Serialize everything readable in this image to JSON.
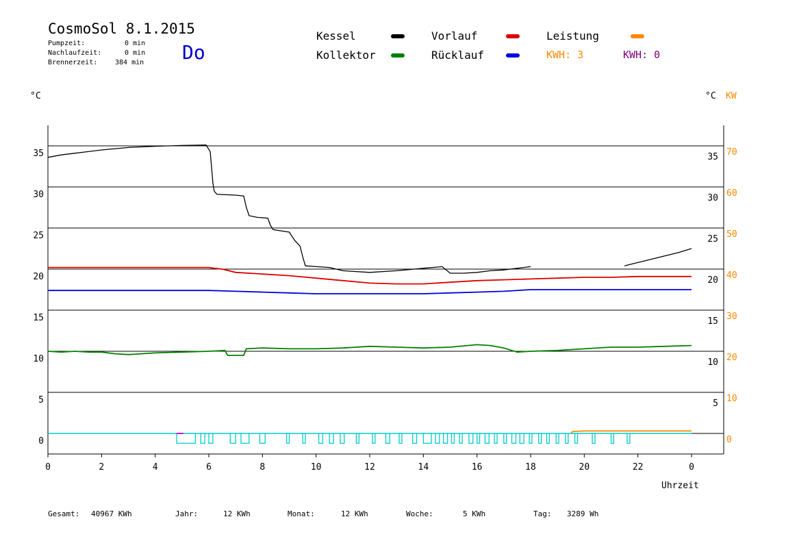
{
  "header": {
    "title": "CosmoSol 8.1.2015",
    "weekday": "Do",
    "stats": [
      {
        "label": "Pumpzeit:",
        "value": "0 min"
      },
      {
        "label": "Nachlaufzeit:",
        "value": "0 min"
      },
      {
        "label": "Brennerzeit:",
        "value": "384 min"
      }
    ]
  },
  "legend": {
    "items": [
      {
        "label": "Kessel",
        "color": "#000000"
      },
      {
        "label": "Vorlauf",
        "color": "#dd0000"
      },
      {
        "label": "Leistung",
        "color": "#ff8800"
      },
      {
        "label": "Kollektor",
        "color": "#008000"
      },
      {
        "label": "Rücklauf",
        "color": "#0000dd"
      }
    ],
    "kwh1": {
      "label": "KWH: 3",
      "color": "#ff8800"
    },
    "kwh2": {
      "label": "KWH: 0",
      "color": "#800080"
    }
  },
  "axes": {
    "left_unit": "°C",
    "right_unit_c": "°C",
    "right_unit_kw": "KW",
    "x_label": "Uhrzeit"
  },
  "footer": {
    "gesamt_label": "Gesamt:",
    "gesamt_value": "40967 KWh",
    "jahr_label": "Jahr:",
    "jahr_value": "12 KWh",
    "monat_label": "Monat:",
    "monat_value": "12 KWh",
    "woche_label": "Woche:",
    "woche_value": "5 KWh",
    "tag_label": "Tag:",
    "tag_value": "3289 Wh"
  },
  "chart_data": {
    "type": "line",
    "xlabel": "Uhrzeit",
    "ylabel": "°C",
    "xlim": [
      0,
      24
    ],
    "ylim": [
      -2.5,
      37.5
    ],
    "x_ticks": [
      "0",
      "2",
      "4",
      "6",
      "8",
      "10",
      "12",
      "14",
      "16",
      "18",
      "20",
      "22",
      "0"
    ],
    "y_ticks_left": [
      0,
      5,
      10,
      15,
      20,
      25,
      30,
      35
    ],
    "y_ticks_right_c": [
      5,
      10,
      15,
      20,
      25,
      30,
      35
    ],
    "y_ticks_right_kw": [
      0,
      10,
      20,
      30,
      40,
      50,
      60,
      70
    ],
    "grid": true,
    "series": [
      {
        "name": "Kessel",
        "color": "#000000",
        "segments": [
          [
            [
              0,
              33.6
            ],
            [
              0.5,
              33.9
            ],
            [
              1,
              34.1
            ],
            [
              2,
              34.5
            ],
            [
              3,
              34.8
            ],
            [
              4,
              34.95
            ],
            [
              5,
              35.05
            ],
            [
              5.9,
              35.1
            ],
            [
              6.05,
              34.3
            ],
            [
              6.1,
              32.5
            ],
            [
              6.15,
              30.5
            ],
            [
              6.2,
              29.5
            ],
            [
              6.3,
              29.1
            ],
            [
              7,
              29
            ],
            [
              7.3,
              28.9
            ],
            [
              7.4,
              27.5
            ],
            [
              7.5,
              26.5
            ],
            [
              7.8,
              26.3
            ],
            [
              8.2,
              26.2
            ],
            [
              8.3,
              25.3
            ],
            [
              8.4,
              24.8
            ],
            [
              9,
              24.5
            ],
            [
              9.2,
              23.5
            ],
            [
              9.4,
              22.8
            ],
            [
              9.5,
              21.5
            ],
            [
              9.6,
              20.4
            ],
            [
              10,
              20.3
            ],
            [
              10.5,
              20.2
            ],
            [
              11,
              19.8
            ],
            [
              12,
              19.6
            ],
            [
              13,
              19.8
            ],
            [
              14,
              20.1
            ],
            [
              14.7,
              20.3
            ],
            [
              15,
              19.5
            ],
            [
              15.5,
              19.5
            ],
            [
              16,
              19.6
            ],
            [
              16.5,
              19.8
            ],
            [
              17,
              19.9
            ],
            [
              17.5,
              20.1
            ],
            [
              18,
              20.3
            ]
          ],
          [
            [
              21.5,
              20.4
            ],
            [
              22,
              20.8
            ],
            [
              22.5,
              21.2
            ],
            [
              23,
              21.6
            ],
            [
              23.5,
              22
            ],
            [
              24,
              22.5
            ]
          ]
        ]
      },
      {
        "name": "Vorlauf",
        "color": "#dd0000",
        "segments": [
          [
            [
              0,
              20.2
            ],
            [
              3,
              20.2
            ],
            [
              6,
              20.2
            ],
            [
              6.2,
              20.1
            ],
            [
              6.5,
              20.0
            ],
            [
              7,
              19.6
            ],
            [
              8,
              19.4
            ],
            [
              9,
              19.2
            ],
            [
              10,
              18.9
            ],
            [
              11,
              18.6
            ],
            [
              12,
              18.3
            ],
            [
              13,
              18.2
            ],
            [
              14,
              18.2
            ],
            [
              15,
              18.4
            ],
            [
              16,
              18.6
            ],
            [
              17,
              18.7
            ],
            [
              18,
              18.8
            ],
            [
              19,
              18.9
            ],
            [
              20,
              19.0
            ],
            [
              21,
              19.0
            ],
            [
              22,
              19.1
            ],
            [
              23,
              19.1
            ],
            [
              24,
              19.1
            ]
          ]
        ]
      },
      {
        "name": "Rücklauf",
        "color": "#0000dd",
        "segments": [
          [
            [
              0,
              17.4
            ],
            [
              3,
              17.4
            ],
            [
              6,
              17.4
            ],
            [
              7,
              17.3
            ],
            [
              8,
              17.2
            ],
            [
              9,
              17.1
            ],
            [
              10,
              17.0
            ],
            [
              11,
              17.0
            ],
            [
              12,
              17.0
            ],
            [
              13,
              17.0
            ],
            [
              14,
              17.0
            ],
            [
              15,
              17.1
            ],
            [
              16,
              17.2
            ],
            [
              17,
              17.3
            ],
            [
              18,
              17.5
            ],
            [
              19,
              17.5
            ],
            [
              20,
              17.5
            ],
            [
              21,
              17.5
            ],
            [
              22,
              17.5
            ],
            [
              23,
              17.5
            ],
            [
              24,
              17.5
            ]
          ]
        ]
      },
      {
        "name": "Kollektor",
        "color": "#008000",
        "segments": [
          [
            [
              0,
              10.0
            ],
            [
              0.5,
              9.9
            ],
            [
              1,
              10.0
            ],
            [
              1.5,
              9.9
            ],
            [
              2,
              9.9
            ],
            [
              2.5,
              9.7
            ],
            [
              3,
              9.6
            ],
            [
              3.5,
              9.7
            ],
            [
              4,
              9.8
            ],
            [
              5,
              9.9
            ],
            [
              6,
              10.0
            ],
            [
              6.6,
              10.1
            ],
            [
              6.7,
              9.5
            ],
            [
              7,
              9.5
            ],
            [
              7.3,
              9.5
            ],
            [
              7.4,
              10.3
            ],
            [
              8,
              10.4
            ],
            [
              9,
              10.3
            ],
            [
              10,
              10.3
            ],
            [
              11,
              10.4
            ],
            [
              12,
              10.6
            ],
            [
              13,
              10.5
            ],
            [
              14,
              10.4
            ],
            [
              15,
              10.5
            ],
            [
              16,
              10.8
            ],
            [
              16.5,
              10.7
            ],
            [
              17,
              10.4
            ],
            [
              17.5,
              9.9
            ],
            [
              18,
              10.0
            ],
            [
              19,
              10.1
            ],
            [
              20,
              10.3
            ],
            [
              21,
              10.5
            ],
            [
              22,
              10.5
            ],
            [
              23,
              10.6
            ],
            [
              24,
              10.7
            ]
          ]
        ]
      },
      {
        "name": "Leistung",
        "color": "#ff8800",
        "segments": [
          [
            [
              19.5,
              0.1
            ],
            [
              19.6,
              0.25
            ],
            [
              20,
              0.3
            ],
            [
              21,
              0.3
            ],
            [
              22,
              0.3
            ],
            [
              23,
              0.3
            ],
            [
              24,
              0.3
            ]
          ]
        ]
      }
    ],
    "pump_pulses": [
      [
        4.8,
        5.5
      ],
      [
        5.7,
        5.85
      ],
      [
        6.0,
        6.15
      ],
      [
        6.8,
        7.0
      ],
      [
        7.2,
        7.5
      ],
      [
        7.9,
        8.1
      ],
      [
        8.9,
        9.0
      ],
      [
        9.5,
        9.6
      ],
      [
        10.1,
        10.25
      ],
      [
        10.5,
        10.65
      ],
      [
        10.9,
        11.05
      ],
      [
        11.5,
        11.6
      ],
      [
        12.1,
        12.2
      ],
      [
        12.6,
        12.75
      ],
      [
        13.1,
        13.2
      ],
      [
        13.6,
        13.75
      ],
      [
        14.0,
        14.3
      ],
      [
        14.45,
        14.6
      ],
      [
        14.75,
        14.9
      ],
      [
        15.05,
        15.15
      ],
      [
        15.35,
        15.45
      ],
      [
        15.7,
        15.85
      ],
      [
        16.0,
        16.1
      ],
      [
        16.3,
        16.45
      ],
      [
        16.65,
        16.75
      ],
      [
        17.0,
        17.1
      ],
      [
        17.3,
        17.45
      ],
      [
        17.6,
        17.75
      ],
      [
        17.95,
        18.05
      ],
      [
        18.3,
        18.4
      ],
      [
        18.6,
        18.7
      ],
      [
        18.95,
        19.05
      ],
      [
        19.3,
        19.4
      ],
      [
        19.65,
        19.75
      ],
      [
        20.3,
        20.4
      ],
      [
        21.0,
        21.1
      ],
      [
        21.6,
        21.7
      ]
    ],
    "pump_pulses_magenta": [
      [
        4.8,
        5.05
      ]
    ]
  }
}
